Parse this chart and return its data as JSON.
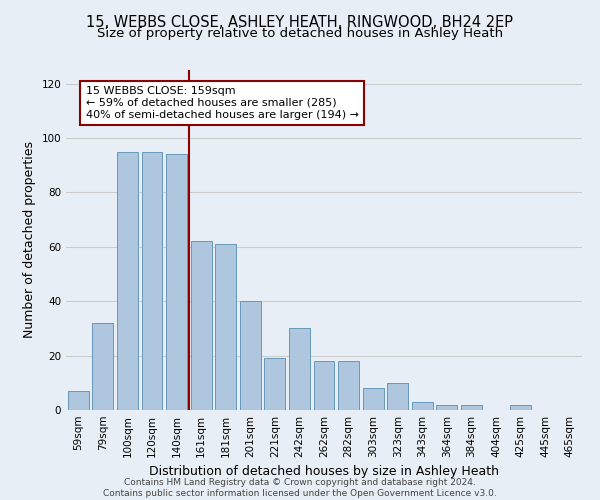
{
  "title_line1": "15, WEBBS CLOSE, ASHLEY HEATH, RINGWOOD, BH24 2EP",
  "title_line2": "Size of property relative to detached houses in Ashley Heath",
  "xlabel": "Distribution of detached houses by size in Ashley Heath",
  "ylabel": "Number of detached properties",
  "categories": [
    "59sqm",
    "79sqm",
    "100sqm",
    "120sqm",
    "140sqm",
    "161sqm",
    "181sqm",
    "201sqm",
    "221sqm",
    "242sqm",
    "262sqm",
    "282sqm",
    "303sqm",
    "323sqm",
    "343sqm",
    "364sqm",
    "384sqm",
    "404sqm",
    "425sqm",
    "445sqm",
    "465sqm"
  ],
  "values": [
    7,
    32,
    95,
    95,
    94,
    62,
    61,
    40,
    19,
    30,
    18,
    18,
    8,
    10,
    3,
    2,
    2,
    0,
    2,
    0,
    0
  ],
  "bar_color": "#aec6de",
  "bar_edge_color": "#6699bb",
  "vline_color": "#8b0000",
  "annotation_text": "15 WEBBS CLOSE: 159sqm\n← 59% of detached houses are smaller (285)\n40% of semi-detached houses are larger (194) →",
  "annotation_box_color": "#ffffff",
  "annotation_box_edge": "#8b0000",
  "ylim": [
    0,
    125
  ],
  "yticks": [
    0,
    20,
    40,
    60,
    80,
    100,
    120
  ],
  "grid_color": "#cccccc",
  "bg_color": "#e8eef5",
  "plot_bg_color": "#e8eef5",
  "footer_line1": "Contains HM Land Registry data © Crown copyright and database right 2024.",
  "footer_line2": "Contains public sector information licensed under the Open Government Licence v3.0.",
  "title_fontsize": 10.5,
  "subtitle_fontsize": 9.5,
  "tick_fontsize": 7.5,
  "ylabel_fontsize": 9,
  "xlabel_fontsize": 9,
  "annotation_fontsize": 8,
  "footer_fontsize": 6.5
}
